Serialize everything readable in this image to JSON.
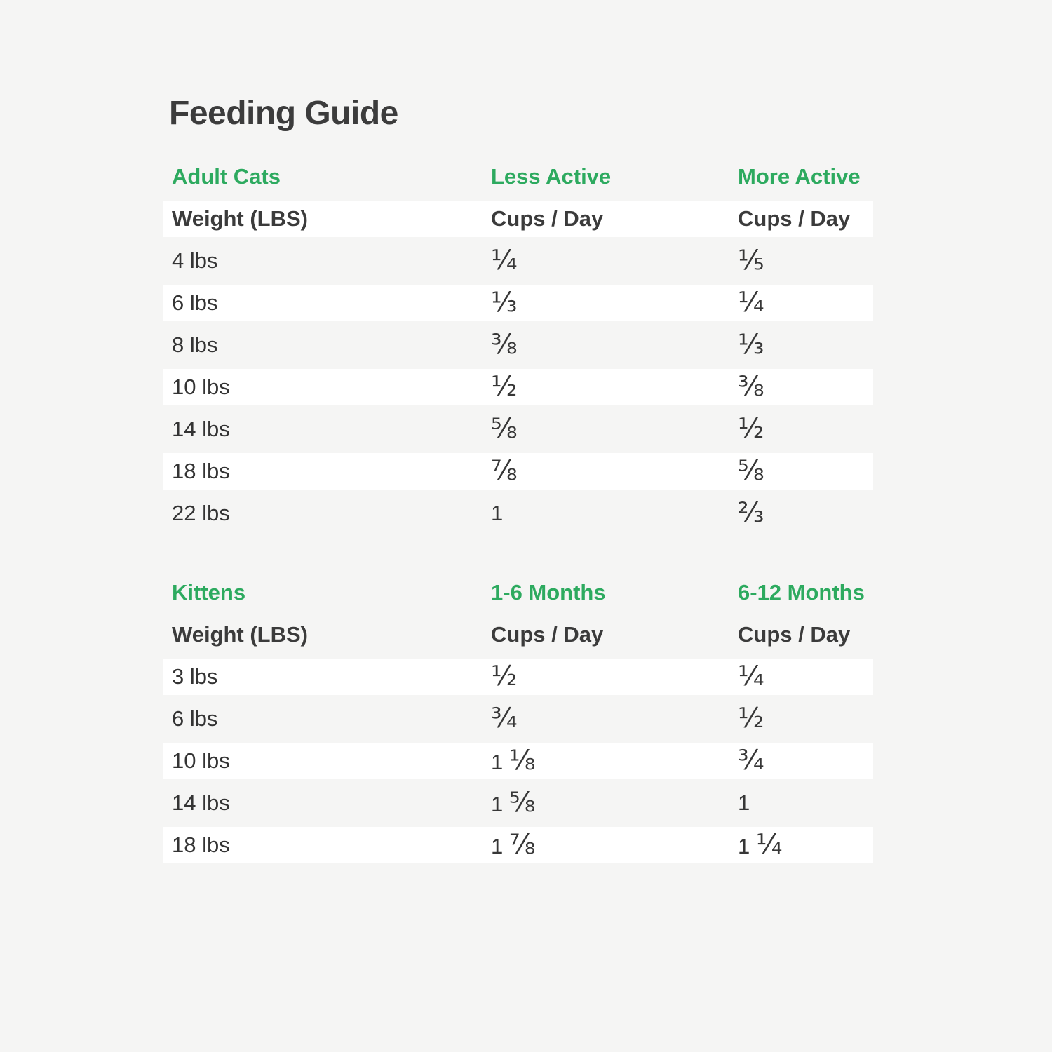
{
  "page": {
    "title": "Feeding Guide"
  },
  "colors": {
    "background": "#f5f5f4",
    "row_stripe": "#ffffff",
    "accent_green": "#2daa5f",
    "text_dark": "#3b3b3b"
  },
  "tables": [
    {
      "section": "Adult Cats",
      "col_headers": [
        "Less Active",
        "More Active"
      ],
      "subheaders": [
        "Weight (LBS)",
        "Cups / Day",
        "Cups / Day"
      ],
      "stripe_start": 0,
      "rows": [
        [
          "4 lbs",
          "¼",
          "⅕"
        ],
        [
          "6 lbs",
          "⅓",
          "¼"
        ],
        [
          "8 lbs",
          "⅜",
          "⅓"
        ],
        [
          "10 lbs",
          "½",
          "⅜"
        ],
        [
          "14 lbs",
          "⅝",
          "½"
        ],
        [
          "18 lbs",
          "⅞",
          "⅝"
        ],
        [
          "22 lbs",
          "1",
          "⅔"
        ]
      ]
    },
    {
      "section": "Kittens",
      "col_headers": [
        "1-6 Months",
        "6-12 Months"
      ],
      "subheaders": [
        "Weight (LBS)",
        "Cups / Day",
        "Cups / Day"
      ],
      "stripe_start": 1,
      "rows": [
        [
          "3 lbs",
          "½",
          "¼"
        ],
        [
          "6 lbs",
          "¾",
          "½"
        ],
        [
          "10 lbs",
          "1 ⅛",
          "¾"
        ],
        [
          "14 lbs",
          "1 ⅝",
          "1"
        ],
        [
          "18 lbs",
          "1 ⅞",
          "1 ¼"
        ]
      ]
    }
  ]
}
